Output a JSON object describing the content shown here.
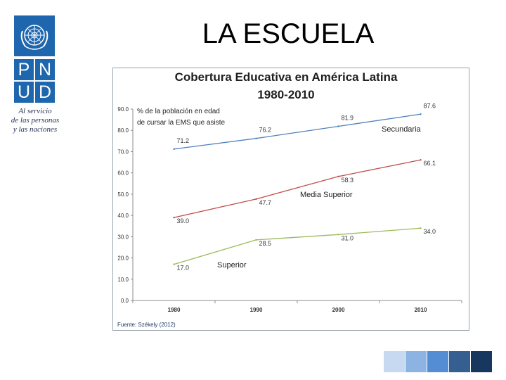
{
  "slide": {
    "title": "LA ESCUELA"
  },
  "logo": {
    "letters": [
      "P",
      "N",
      "U",
      "D"
    ],
    "tagline_lines": [
      "Al servicio",
      "de las personas",
      "y las naciones"
    ],
    "color": "#1e66ad"
  },
  "chart_data": {
    "type": "line",
    "title": "Cobertura Educativa en América Latina",
    "subtitle": "1980-2010",
    "ylabel": "% de la población en edad de cursar la EMS que asiste",
    "ylabel_lines": [
      "% de la población en edad",
      "de cursar la EMS que asiste"
    ],
    "xlabel": "",
    "x": [
      "1980",
      "1990",
      "2000",
      "2010"
    ],
    "ylim": [
      0,
      90
    ],
    "yticks": [
      "0.0",
      "10.0",
      "20.0",
      "30.0",
      "40.0",
      "50.0",
      "60.0",
      "70.0",
      "80.0",
      "90.0"
    ],
    "grid": false,
    "source": "Fuente: Székely (2012)",
    "series": [
      {
        "name": "Secundaria",
        "values": [
          71.2,
          76.2,
          81.9,
          87.6
        ],
        "labels": [
          "71.2",
          "76.2",
          "81.9",
          "87.6"
        ],
        "color": "#4f81bd"
      },
      {
        "name": "Media Superior",
        "values": [
          39.0,
          47.7,
          58.3,
          66.1
        ],
        "labels": [
          "39.0",
          "47.7",
          "58.3",
          "66.1"
        ],
        "color": "#c0504d"
      },
      {
        "name": "Superior",
        "values": [
          17.0,
          28.5,
          31.0,
          34.0
        ],
        "labels": [
          "17.0",
          "28.5",
          "31.0",
          "34.0"
        ],
        "color": "#9bbb59"
      }
    ]
  },
  "decor": {
    "swatches": [
      "#c6d9f1",
      "#8db3e2",
      "#548dd4",
      "#365f91",
      "#17375e"
    ]
  }
}
